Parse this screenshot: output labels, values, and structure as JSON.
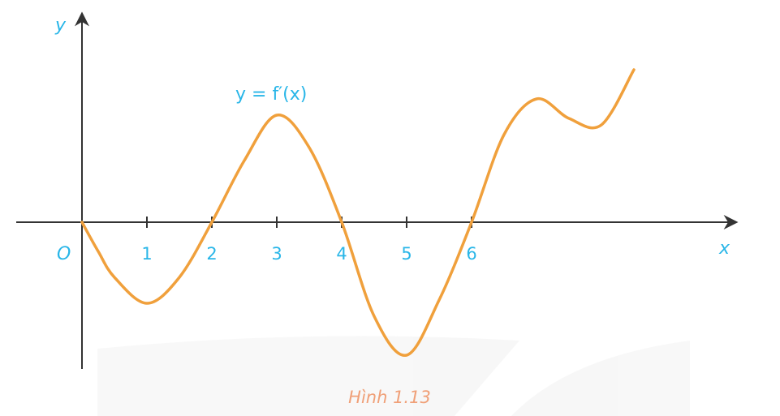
{
  "chart_data": {
    "type": "line",
    "x_axis_label": "x",
    "y_axis_label": "y",
    "origin_label": "O",
    "curve_label": "y = f′(x)",
    "caption": "Hình 1.13",
    "x_ticks": [
      "1",
      "2",
      "3",
      "4",
      "5",
      "6"
    ],
    "grid": false,
    "series": [
      {
        "x": [
          0,
          0.25,
          0.5,
          1,
          1.5,
          2,
          2.5,
          3,
          3.5,
          4,
          4.5,
          5,
          5.5,
          6,
          6.5,
          7,
          7.5,
          8,
          8.5
        ],
        "y": [
          0,
          -0.45,
          -0.85,
          -1.25,
          -0.85,
          0,
          0.95,
          1.65,
          1.15,
          0,
          -1.45,
          -2.05,
          -1.2,
          0,
          1.35,
          1.9,
          1.6,
          1.5,
          2.35
        ]
      }
    ],
    "colors": {
      "curve": "#F0A03C",
      "axis": "#333333",
      "text": "#29B6E8",
      "caption": "#F0A078"
    }
  }
}
